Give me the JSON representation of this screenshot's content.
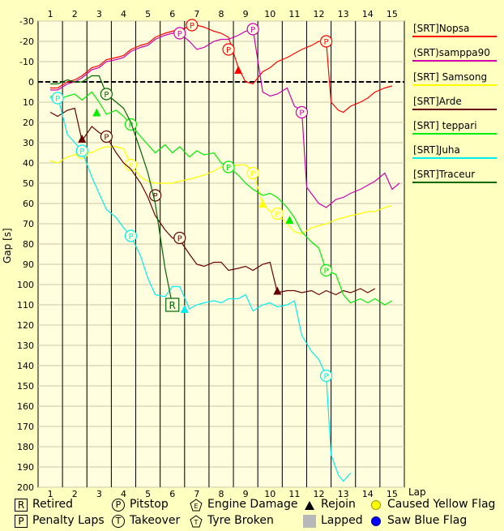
{
  "chart_data": {
    "type": "line",
    "xlabel": "Lap",
    "ylabel": "Gap [s]",
    "xlim": [
      0.5,
      15.5
    ],
    "ylim": [
      -30,
      200
    ],
    "y_inverted": true,
    "x_ticks": [
      "1",
      "2",
      "3",
      "4",
      "5",
      "6",
      "7",
      "8",
      "9",
      "10",
      "11",
      "12",
      "13",
      "14",
      "15"
    ],
    "y_ticks": [
      "-30",
      "-20",
      "-10",
      "0",
      "10",
      "20",
      "30",
      "40",
      "50",
      "60",
      "70",
      "80",
      "90",
      "100",
      "110",
      "120",
      "130",
      "140",
      "150",
      "160",
      "170",
      "180",
      "190",
      "200"
    ],
    "grid": true,
    "legend_position": "right",
    "series": [
      {
        "name": "[SRT]Nopsa",
        "color": "#ff0000",
        "points": [
          [
            1,
            3
          ],
          [
            1.3,
            3
          ],
          [
            1.7,
            0
          ],
          [
            2,
            -1
          ],
          [
            2.3,
            -3
          ],
          [
            2.7,
            -7
          ],
          [
            3,
            -8
          ],
          [
            3.3,
            -11
          ],
          [
            3.7,
            -12
          ],
          [
            4,
            -13
          ],
          [
            4.3,
            -16
          ],
          [
            4.7,
            -18
          ],
          [
            5,
            -19
          ],
          [
            5.3,
            -22
          ],
          [
            5.7,
            -24
          ],
          [
            6,
            -25
          ],
          [
            6.3,
            -26
          ],
          [
            6.7,
            -27
          ],
          [
            7,
            -28
          ],
          [
            7.3,
            -27
          ],
          [
            7.7,
            -25
          ],
          [
            8,
            -24
          ],
          [
            8.3,
            -22
          ],
          [
            8.7,
            -7
          ],
          [
            9,
            0
          ],
          [
            9.3,
            1
          ],
          [
            9.7,
            -5
          ],
          [
            10,
            -7
          ],
          [
            10.3,
            -10
          ],
          [
            10.7,
            -12
          ],
          [
            11,
            -14
          ],
          [
            11.3,
            -16
          ],
          [
            11.7,
            -18
          ],
          [
            12,
            -20
          ],
          [
            12.3,
            -20
          ],
          [
            12.5,
            10
          ],
          [
            12.8,
            14
          ],
          [
            13,
            15
          ],
          [
            13.3,
            12
          ],
          [
            13.7,
            10
          ],
          [
            14,
            8
          ],
          [
            14.3,
            5
          ],
          [
            14.7,
            3
          ],
          [
            15,
            2
          ]
        ],
        "pitstops": [
          [
            6.8,
            -28
          ],
          [
            8.3,
            -16
          ],
          [
            12.3,
            -20
          ]
        ],
        "rejoins": [
          [
            8.7,
            -6
          ]
        ]
      },
      {
        "name": "(SRT)samppa90",
        "color": "#cc00aa",
        "points": [
          [
            1,
            4
          ],
          [
            1.3,
            4
          ],
          [
            1.7,
            1
          ],
          [
            2,
            0
          ],
          [
            2.3,
            -2
          ],
          [
            2.7,
            -6
          ],
          [
            3,
            -7
          ],
          [
            3.3,
            -10
          ],
          [
            3.7,
            -11
          ],
          [
            4,
            -12
          ],
          [
            4.3,
            -15
          ],
          [
            4.7,
            -17
          ],
          [
            5,
            -18
          ],
          [
            5.3,
            -21
          ],
          [
            5.7,
            -23
          ],
          [
            6,
            -24
          ],
          [
            6.3,
            -24
          ],
          [
            6.7,
            -20
          ],
          [
            7,
            -16
          ],
          [
            7.3,
            -17
          ],
          [
            7.7,
            -20
          ],
          [
            8,
            -21
          ],
          [
            8.3,
            -21
          ],
          [
            8.7,
            -23
          ],
          [
            9,
            -25
          ],
          [
            9.3,
            -26
          ],
          [
            9.7,
            5
          ],
          [
            10,
            7
          ],
          [
            10.3,
            6
          ],
          [
            10.7,
            3
          ],
          [
            11,
            12
          ],
          [
            11.3,
            14
          ],
          [
            11.5,
            52
          ],
          [
            12,
            60
          ],
          [
            12.3,
            62
          ],
          [
            12.7,
            58
          ],
          [
            13,
            57
          ],
          [
            13.3,
            55
          ],
          [
            13.7,
            53
          ],
          [
            14,
            51
          ],
          [
            14.3,
            49
          ],
          [
            14.7,
            45
          ],
          [
            15,
            53
          ],
          [
            15.3,
            50
          ]
        ],
        "pitstops": [
          [
            6.3,
            -24
          ],
          [
            9.3,
            -26
          ],
          [
            11.3,
            15
          ]
        ]
      },
      {
        "name": "[SRT] Samsong",
        "color": "#ffff00",
        "points": [
          [
            1,
            39
          ],
          [
            1.3,
            40
          ],
          [
            1.7,
            37
          ],
          [
            2,
            36
          ],
          [
            2.3,
            34
          ],
          [
            2.7,
            35
          ],
          [
            3,
            33
          ],
          [
            3.3,
            32
          ],
          [
            3.7,
            32
          ],
          [
            4,
            33
          ],
          [
            4.3,
            41
          ],
          [
            4.7,
            47
          ],
          [
            5,
            49
          ],
          [
            5.3,
            50
          ],
          [
            5.7,
            50
          ],
          [
            6,
            50
          ],
          [
            6.3,
            49
          ],
          [
            6.7,
            48
          ],
          [
            7,
            47
          ],
          [
            7.3,
            46
          ],
          [
            7.7,
            44
          ],
          [
            8,
            42
          ],
          [
            8.3,
            42
          ],
          [
            8.7,
            41
          ],
          [
            9,
            41
          ],
          [
            9.3,
            44
          ],
          [
            9.7,
            60
          ],
          [
            10,
            64
          ],
          [
            10.3,
            65
          ],
          [
            10.7,
            70
          ],
          [
            11,
            74
          ],
          [
            11.3,
            75
          ],
          [
            11.7,
            72
          ],
          [
            12,
            71
          ],
          [
            12.3,
            70
          ],
          [
            12.7,
            68
          ],
          [
            13,
            67
          ],
          [
            13.3,
            66
          ],
          [
            13.7,
            65
          ],
          [
            14,
            64
          ],
          [
            14.3,
            64
          ],
          [
            14.7,
            62
          ],
          [
            15,
            61
          ]
        ],
        "pitstops": [
          [
            2.3,
            35
          ],
          [
            4.3,
            41
          ],
          [
            9.3,
            45
          ],
          [
            10.3,
            65
          ]
        ],
        "rejoins": [
          [
            9.7,
            60
          ]
        ]
      },
      {
        "name": "[SRT]Arde",
        "color": "#660000",
        "points": [
          [
            1,
            15
          ],
          [
            1.3,
            17
          ],
          [
            1.7,
            14
          ],
          [
            2,
            13
          ],
          [
            2.3,
            29
          ],
          [
            2.7,
            22
          ],
          [
            3,
            25
          ],
          [
            3.3,
            27
          ],
          [
            3.7,
            35
          ],
          [
            4,
            40
          ],
          [
            4.3,
            43
          ],
          [
            4.7,
            50
          ],
          [
            5,
            57
          ],
          [
            5.3,
            66
          ],
          [
            5.7,
            73
          ],
          [
            6,
            77
          ],
          [
            6.3,
            78
          ],
          [
            6.7,
            85
          ],
          [
            7,
            90
          ],
          [
            7.3,
            91
          ],
          [
            7.7,
            89
          ],
          [
            8,
            89
          ],
          [
            8.3,
            93
          ],
          [
            8.7,
            92
          ],
          [
            9,
            91
          ],
          [
            9.3,
            93
          ],
          [
            9.7,
            90
          ],
          [
            10,
            89
          ],
          [
            10.3,
            104
          ],
          [
            10.7,
            103
          ],
          [
            11,
            103
          ],
          [
            11.3,
            104
          ],
          [
            11.7,
            103
          ],
          [
            12,
            105
          ],
          [
            12.3,
            103
          ],
          [
            12.7,
            105
          ],
          [
            13,
            103
          ],
          [
            13.3,
            104
          ],
          [
            13.7,
            102
          ],
          [
            14,
            104
          ],
          [
            14.3,
            102
          ]
        ],
        "pitstops": [
          [
            3.3,
            27
          ],
          [
            5.3,
            56
          ],
          [
            6.3,
            77
          ]
        ],
        "rejoins": [
          [
            2.3,
            28
          ],
          [
            10.3,
            103
          ]
        ]
      },
      {
        "name": "[SRT] teppari",
        "color": "#00ee00",
        "points": [
          [
            1,
            7
          ],
          [
            1.3,
            9
          ],
          [
            1.7,
            7
          ],
          [
            2,
            6
          ],
          [
            2.3,
            9
          ],
          [
            2.7,
            5
          ],
          [
            3,
            10
          ],
          [
            3.3,
            16
          ],
          [
            3.7,
            14
          ],
          [
            4,
            17
          ],
          [
            4.3,
            21
          ],
          [
            4.7,
            27
          ],
          [
            5,
            31
          ],
          [
            5.3,
            35
          ],
          [
            5.7,
            31
          ],
          [
            6,
            35
          ],
          [
            6.3,
            32
          ],
          [
            6.7,
            37
          ],
          [
            7,
            34
          ],
          [
            7.3,
            36
          ],
          [
            7.7,
            35
          ],
          [
            8,
            40
          ],
          [
            8.3,
            42
          ],
          [
            8.7,
            46
          ],
          [
            9,
            50
          ],
          [
            9.3,
            53
          ],
          [
            9.7,
            56
          ],
          [
            10,
            55
          ],
          [
            10.3,
            57
          ],
          [
            10.7,
            62
          ],
          [
            11,
            67
          ],
          [
            11.3,
            74
          ],
          [
            11.7,
            79
          ],
          [
            12,
            82
          ],
          [
            12.3,
            93
          ],
          [
            12.7,
            95
          ],
          [
            13,
            105
          ],
          [
            13.3,
            109
          ],
          [
            13.7,
            107
          ],
          [
            14,
            109
          ],
          [
            14.3,
            107
          ],
          [
            14.7,
            110
          ],
          [
            15,
            108
          ]
        ],
        "pitstops": [
          [
            4.3,
            21
          ],
          [
            8.3,
            42
          ],
          [
            12.3,
            93
          ]
        ],
        "rejoins": [
          [
            2.9,
            15
          ],
          [
            10.8,
            68
          ]
        ]
      },
      {
        "name": "[SRT]Juha",
        "color": "#00eeee",
        "points": [
          [
            1,
            8
          ],
          [
            1.3,
            7
          ],
          [
            1.7,
            26
          ],
          [
            2,
            30
          ],
          [
            2.3,
            34
          ],
          [
            2.7,
            47
          ],
          [
            3,
            55
          ],
          [
            3.3,
            63
          ],
          [
            3.7,
            67
          ],
          [
            4,
            72
          ],
          [
            4.3,
            76
          ],
          [
            4.7,
            86
          ],
          [
            5,
            97
          ],
          [
            5.3,
            105
          ],
          [
            5.7,
            106
          ],
          [
            6,
            101
          ],
          [
            6.3,
            101
          ],
          [
            6.7,
            112
          ],
          [
            7,
            110
          ],
          [
            7.3,
            109
          ],
          [
            7.7,
            108
          ],
          [
            8,
            109
          ],
          [
            8.3,
            107
          ],
          [
            8.7,
            107
          ],
          [
            9,
            105
          ],
          [
            9.3,
            113
          ],
          [
            9.7,
            110
          ],
          [
            10,
            109
          ],
          [
            10.3,
            111
          ],
          [
            10.7,
            110
          ],
          [
            11,
            108
          ],
          [
            11.3,
            125
          ],
          [
            11.7,
            133
          ],
          [
            12,
            137
          ],
          [
            12.3,
            145
          ],
          [
            12.5,
            184
          ],
          [
            12.8,
            194
          ],
          [
            13,
            197
          ],
          [
            13.3,
            193
          ]
        ],
        "pitstops": [
          [
            1.3,
            8
          ],
          [
            2.3,
            34
          ],
          [
            4.3,
            76
          ],
          [
            12.3,
            145
          ]
        ],
        "rejoins": [
          [
            6.5,
            112
          ]
        ]
      },
      {
        "name": "[SRT]Traceur",
        "color": "#006600",
        "points": [
          [
            1,
            1
          ],
          [
            1.3,
            1
          ],
          [
            1.7,
            -1
          ],
          [
            2,
            0
          ],
          [
            2.3,
            0
          ],
          [
            2.7,
            -3
          ],
          [
            3,
            -3
          ],
          [
            3.3,
            6
          ],
          [
            3.7,
            10
          ],
          [
            4,
            13
          ],
          [
            4.3,
            20
          ],
          [
            4.7,
            34
          ],
          [
            5,
            45
          ],
          [
            5.3,
            60
          ],
          [
            5.7,
            92
          ],
          [
            6,
            110
          ]
        ],
        "pitstops": [
          [
            3.3,
            6
          ]
        ],
        "retired": [
          [
            6,
            110
          ]
        ]
      }
    ]
  },
  "key": {
    "retired": "Retired",
    "penalty": "Penalty Laps",
    "pitstop": "Pitstop",
    "takeover": "Takeover",
    "engine": "Engine Damage",
    "tyre": "Tyre Broken",
    "rejoin": "Rejoin",
    "lapped": "Lapped",
    "yellow": "Caused Yellow Flag",
    "blue": "Saw Blue Flag",
    "sym_r": "R",
    "sym_p": "P",
    "sym_t": "T",
    "sym_e": "E"
  }
}
